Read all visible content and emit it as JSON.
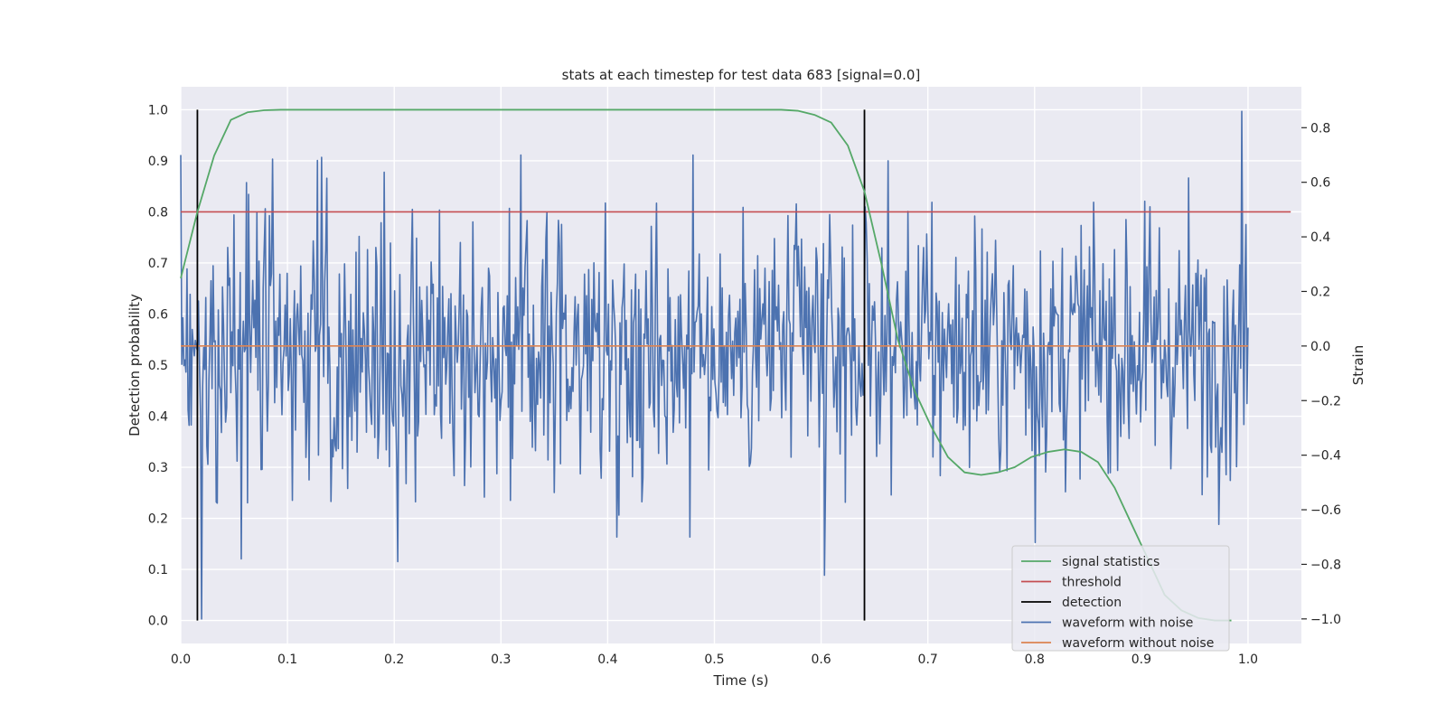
{
  "chart_data": {
    "type": "line",
    "title": "stats at each timestep for test data 683 [signal=0.0]",
    "xlabel": "Time (s)",
    "ylabel": "Detection probability",
    "y2label": "Strain",
    "xlim": [
      0.0,
      1.05
    ],
    "ylim": [
      -0.045,
      1.045
    ],
    "y2lim": [
      -1.09,
      0.95
    ],
    "xticks": [
      "0.0",
      "0.1",
      "0.2",
      "0.3",
      "0.4",
      "0.5",
      "0.6",
      "0.7",
      "0.8",
      "0.9",
      "1.0"
    ],
    "yticks": [
      "0.0",
      "0.1",
      "0.2",
      "0.3",
      "0.4",
      "0.5",
      "0.6",
      "0.7",
      "0.8",
      "0.9",
      "1.0"
    ],
    "y2ticks": [
      "−1.0",
      "−0.8",
      "−0.6",
      "−0.4",
      "−0.2",
      "0.0",
      "0.2",
      "0.4",
      "0.6",
      "0.8"
    ],
    "grid": true,
    "legend_position": "lower-right",
    "colors": {
      "background": "#eaeaf2",
      "grid": "#ffffff",
      "signal_statistics": "#55a868",
      "threshold": "#c44e52",
      "detection": "#000000",
      "waveform_with_noise": "#4c72b0",
      "waveform_without_noise": "#dd8452"
    },
    "series": [
      {
        "name": "signal statistics",
        "axis": "left",
        "x": [
          0.0,
          0.0156,
          0.0313,
          0.0469,
          0.0625,
          0.0781,
          0.0938,
          0.1094,
          0.125,
          0.5625,
          0.5781,
          0.5938,
          0.6094,
          0.625,
          0.6406,
          0.6563,
          0.6719,
          0.6875,
          0.7031,
          0.7188,
          0.7344,
          0.75,
          0.7656,
          0.7813,
          0.7969,
          0.8125,
          0.8281,
          0.8438,
          0.8594,
          0.875,
          0.8906,
          0.9063,
          0.9219,
          0.9375,
          0.9531,
          0.9688,
          0.9844
        ],
        "y": [
          0.67,
          0.8,
          0.91,
          0.98,
          0.995,
          0.999,
          1.0,
          1.0,
          1.0,
          1.0,
          0.998,
          0.99,
          0.975,
          0.93,
          0.84,
          0.7,
          0.55,
          0.45,
          0.38,
          0.32,
          0.29,
          0.285,
          0.29,
          0.3,
          0.32,
          0.33,
          0.335,
          0.33,
          0.31,
          0.26,
          0.19,
          0.12,
          0.05,
          0.02,
          0.005,
          0.0,
          0.0
        ]
      },
      {
        "name": "threshold",
        "axis": "left",
        "x": [
          0.0,
          1.04
        ],
        "y": [
          0.8,
          0.8
        ]
      },
      {
        "name": "detection",
        "axis": "left",
        "segments": [
          {
            "x": 0.0156,
            "y": [
              0.0,
              1.0
            ]
          },
          {
            "x": 0.6406,
            "y": [
              0.0,
              1.0
            ]
          }
        ]
      },
      {
        "name": "waveform with noise",
        "axis": "right",
        "x_start": 0.0,
        "x_end": 1.0,
        "n_points": 1024,
        "y_range": [
          -1.0,
          1.0
        ],
        "annotated_points": [
          {
            "x": 0.0,
            "y": 0.7
          },
          {
            "x": 0.0195,
            "y": -1.0
          },
          {
            "x": 0.0566,
            "y": -0.78
          },
          {
            "x": 0.128,
            "y": 0.68
          },
          {
            "x": 0.2031,
            "y": -0.79
          },
          {
            "x": 0.6035,
            "y": -0.84
          },
          {
            "x": 0.8008,
            "y": -0.72
          },
          {
            "x": 0.9941,
            "y": 0.86
          }
        ]
      },
      {
        "name": "waveform without noise",
        "axis": "right",
        "x": [
          0.0,
          1.0
        ],
        "y": [
          0.0,
          0.0
        ]
      }
    ]
  }
}
